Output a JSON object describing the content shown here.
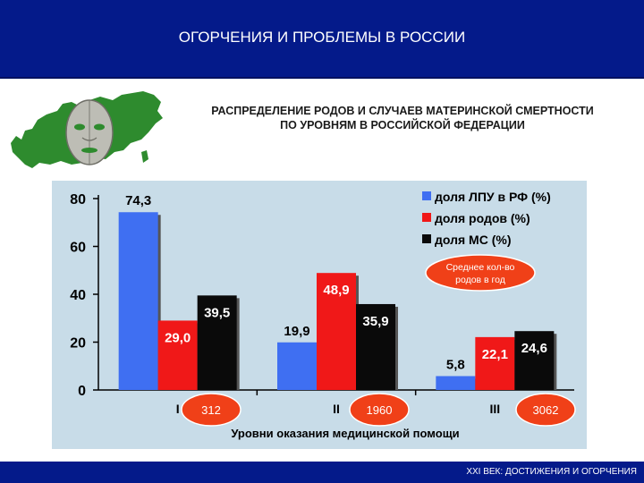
{
  "header": {
    "title": "ОГОРЧЕНИЯ И ПРОБЛЕМЫ В РОССИИ"
  },
  "subtitle": {
    "line1": "РАСПРЕДЕЛЕНИЕ РОДОВ И СЛУЧАЕВ МАТЕРИНСКОЙ СМЕРТНОСТИ",
    "line2": "ПО УРОВНЯМ В РОССИЙСКОЙ ФЕДЕРАЦИИ"
  },
  "footer": {
    "text": "XXI ВЕК: ДОСТИЖЕНИЯ И ОГОРЧЕНИЯ"
  },
  "colors": {
    "header_bg": "#041a8a",
    "chart_bg": "#c8dce8",
    "blue": "#3f6ff2",
    "red": "#f01818",
    "black": "#0a0a0a",
    "ellipse": "#f04018",
    "map_green": "#2e8b2e"
  },
  "chart_data": {
    "type": "bar",
    "categories": [
      "I",
      "II",
      "III"
    ],
    "series": [
      {
        "name": "доля ЛПУ в РФ (%)",
        "values": [
          74.3,
          19.9,
          5.8
        ],
        "labels": [
          "74,3",
          "19,9",
          "5,8"
        ],
        "color": "#3f6ff2"
      },
      {
        "name": "доля родов (%)",
        "values": [
          29.0,
          48.9,
          22.1
        ],
        "labels": [
          "29,0",
          "48,9",
          "22,1"
        ],
        "color": "#f01818"
      },
      {
        "name": "доля МС (%)",
        "values": [
          39.5,
          35.9,
          24.6
        ],
        "labels": [
          "39,5",
          "35,9",
          "24,6"
        ],
        "color": "#0a0a0a"
      }
    ],
    "ylim": [
      0,
      80
    ],
    "yticks": [
      "0",
      "20",
      "40",
      "60",
      "80"
    ],
    "xlabel": "Уровни оказания медицинской помощи",
    "ylabel": "",
    "legend_position": "top-right",
    "annotation": "Среднее кол-во родов в год",
    "avg_births": [
      "312",
      "1960",
      "3062"
    ]
  }
}
